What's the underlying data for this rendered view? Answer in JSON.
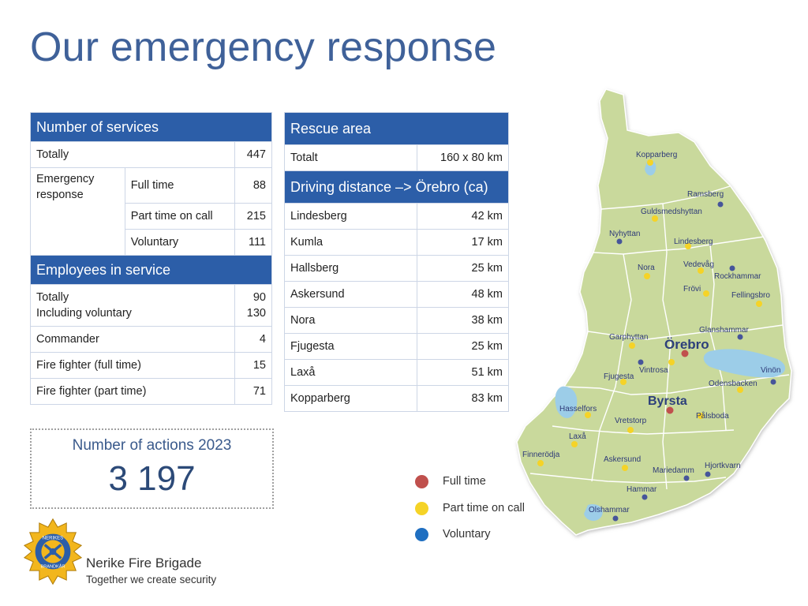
{
  "page": {
    "title": "Our emergency response"
  },
  "services": {
    "header": "Number of services",
    "totally_label": "Totally",
    "totally_value": "447",
    "emergency_label": "Emergency response",
    "full_time_label": "Full time",
    "full_time_value": "88",
    "part_time_label": "Part time on call",
    "part_time_value": "215",
    "voluntary_label": "Voluntary",
    "voluntary_value": "111",
    "employees_header": "Employees in service",
    "emp_totally_label": "Totally",
    "emp_totally_value": "90",
    "emp_incl_label": "Including voluntary",
    "emp_incl_value": "130",
    "commander_label": "Commander",
    "commander_value": "4",
    "ff_full_label": "Fire fighter (full time)",
    "ff_full_value": "15",
    "ff_part_label": "Fire fighter (part time)",
    "ff_part_value": "71"
  },
  "rescue": {
    "header": "Rescue area",
    "totalt_label": "Totalt",
    "totalt_value": "160 x 80 km",
    "distance_header": "Driving distance –> Örebro (ca)",
    "rows": [
      {
        "place": "Lindesberg",
        "km": "42 km"
      },
      {
        "place": "Kumla",
        "km": "17 km"
      },
      {
        "place": "Hallsberg",
        "km": "25 km"
      },
      {
        "place": "Askersund",
        "km": "48 km"
      },
      {
        "place": "Nora",
        "km": "38 km"
      },
      {
        "place": "Fjugesta",
        "km": "25 km"
      },
      {
        "place": "Laxå",
        "km": "51 km"
      },
      {
        "place": "Kopparberg",
        "km": "83 km"
      }
    ]
  },
  "actions": {
    "title": "Number of actions 2023",
    "value": "3 197"
  },
  "legend": [
    {
      "label": "Full time",
      "color": "#c0504d"
    },
    {
      "label": "Part time on call",
      "color": "#f5d327"
    },
    {
      "label": "Voluntary",
      "color": "#1f6fc1"
    }
  ],
  "org": {
    "name": "Nerike Fire Brigade",
    "slogan": "Together we create security",
    "logo_text_top": "NERIKES",
    "logo_text_bottom": "BRANDKÅR"
  },
  "map": {
    "city_main": "Örebro",
    "city_second": "Byrsta",
    "labels": {
      "kopparberg": "Kopparberg",
      "ramsberg": "Ramsberg",
      "guldsmedshyttan": "Guldsmedshyttan",
      "nyhyttan": "Nyhyttan",
      "lindesberg": "Lindesberg",
      "nora": "Nora",
      "vedevag": "Vedevåg",
      "rockhammar": "Rockhammar",
      "frovi": "Frövi",
      "fellingsbro": "Fellingsbro",
      "glanshammar": "Glanshammar",
      "garphyttan": "Garphyttan",
      "vintrosa": "Vintrosa",
      "fjugesta": "Fjugesta",
      "vinon": "Vinön",
      "odensbacken": "Odensbacken",
      "hasselfors": "Hasselfors",
      "vretstorp": "Vretstorp",
      "palsboda": "Pålsboda",
      "laxa": "Laxå",
      "finnerodja": "Finnerödja",
      "askersund": "Askersund",
      "mariedamm": "Mariedamm",
      "hjortkvarn": "Hjortkvarn",
      "hammar": "Hammar",
      "olshammar": "Olshammar"
    }
  }
}
